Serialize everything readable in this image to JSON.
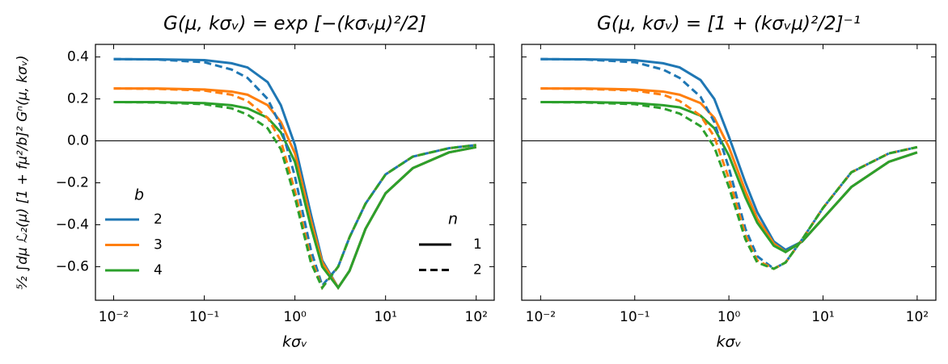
{
  "chart_data": [
    {
      "type": "line",
      "title": "G(μ, kσᵥ) = exp [−(kσᵥμ)²/2]",
      "xlabel": "kσᵥ",
      "ylabel": "⁵⁄₂ ∫dμ ℒ₂(μ) [1 + fμ²/b]² Gⁿ(μ, kσᵥ)",
      "xscale": "log",
      "xlim": [
        0.0063,
        158
      ],
      "ylim": [
        -0.76,
        0.46
      ],
      "xticks": [
        {
          "value": 0.01,
          "label": "10⁻²"
        },
        {
          "value": 0.1,
          "label": "10⁻¹"
        },
        {
          "value": 1,
          "label": "10⁰"
        },
        {
          "value": 10,
          "label": "10¹"
        },
        {
          "value": 100,
          "label": "10²"
        }
      ],
      "yticks": [
        {
          "value": -0.6,
          "label": "−0.6"
        },
        {
          "value": -0.4,
          "label": "−0.4"
        },
        {
          "value": -0.2,
          "label": "−0.2"
        },
        {
          "value": 0,
          "label": "0.0"
        },
        {
          "value": 0.2,
          "label": "0.2"
        },
        {
          "value": 0.4,
          "label": "0.4"
        }
      ],
      "ytick_labels": true,
      "hline": 0,
      "x": [
        0.01,
        0.03,
        0.1,
        0.2,
        0.3,
        0.5,
        0.7,
        1,
        1.5,
        2,
        3,
        4,
        6,
        10,
        20,
        50,
        100
      ],
      "series": [
        {
          "color": "#1f77b4",
          "dash": "solid",
          "values": [
            0.39,
            0.389,
            0.385,
            0.37,
            0.35,
            0.28,
            0.17,
            -0.02,
            -0.35,
            -0.57,
            -0.7,
            -0.62,
            -0.42,
            -0.25,
            -0.13,
            -0.055,
            -0.03
          ]
        },
        {
          "color": "#ff7f0e",
          "dash": "solid",
          "values": [
            0.25,
            0.25,
            0.245,
            0.235,
            0.22,
            0.17,
            0.09,
            -0.06,
            -0.38,
            -0.58,
            -0.7,
            -0.62,
            -0.42,
            -0.25,
            -0.13,
            -0.055,
            -0.03
          ]
        },
        {
          "color": "#2ca02c",
          "dash": "solid",
          "values": [
            0.185,
            0.185,
            0.18,
            0.17,
            0.155,
            0.11,
            0.04,
            -0.1,
            -0.41,
            -0.6,
            -0.7,
            -0.62,
            -0.42,
            -0.25,
            -0.13,
            -0.055,
            -0.03
          ]
        },
        {
          "color": "#1f77b4",
          "dash": "dashed",
          "values": [
            0.39,
            0.388,
            0.375,
            0.34,
            0.3,
            0.2,
            0.07,
            -0.17,
            -0.52,
            -0.69,
            -0.6,
            -0.46,
            -0.3,
            -0.16,
            -0.075,
            -0.035,
            -0.02
          ]
        },
        {
          "color": "#ff7f0e",
          "dash": "dashed",
          "values": [
            0.25,
            0.248,
            0.24,
            0.22,
            0.19,
            0.11,
            0.0,
            -0.24,
            -0.56,
            -0.7,
            -0.6,
            -0.46,
            -0.3,
            -0.16,
            -0.075,
            -0.035,
            -0.02
          ]
        },
        {
          "color": "#2ca02c",
          "dash": "dashed",
          "values": [
            0.185,
            0.183,
            0.175,
            0.155,
            0.125,
            0.06,
            -0.04,
            -0.27,
            -0.58,
            -0.7,
            -0.6,
            -0.46,
            -0.3,
            -0.16,
            -0.075,
            -0.035,
            -0.02
          ]
        }
      ],
      "legend_b": {
        "title": "b",
        "entries": [
          {
            "name": "2",
            "color": "#1f77b4"
          },
          {
            "name": "3",
            "color": "#ff7f0e"
          },
          {
            "name": "4",
            "color": "#2ca02c"
          }
        ]
      },
      "legend_n": {
        "title": "n",
        "entries": [
          {
            "name": "1",
            "dash": "solid"
          },
          {
            "name": "2",
            "dash": "dashed"
          }
        ]
      }
    },
    {
      "type": "line",
      "title": "G(μ, kσᵥ) = [1 + (kσᵥμ)²/2]⁻¹",
      "xlabel": "kσᵥ",
      "xscale": "log",
      "xlim": [
        0.0063,
        158
      ],
      "ylim": [
        -0.76,
        0.46
      ],
      "xticks": [
        {
          "value": 0.01,
          "label": "10⁻²"
        },
        {
          "value": 0.1,
          "label": "10⁻¹"
        },
        {
          "value": 1,
          "label": "10⁰"
        },
        {
          "value": 10,
          "label": "10¹"
        },
        {
          "value": 100,
          "label": "10²"
        }
      ],
      "yticks": [
        -0.6,
        -0.4,
        -0.2,
        0,
        0.2,
        0.4
      ],
      "ytick_labels": false,
      "hline": 0,
      "x": [
        0.01,
        0.03,
        0.1,
        0.2,
        0.3,
        0.5,
        0.7,
        1,
        1.5,
        2,
        3,
        4,
        6,
        10,
        20,
        50,
        100
      ],
      "series": [
        {
          "color": "#1f77b4",
          "dash": "solid",
          "values": [
            0.39,
            0.389,
            0.385,
            0.37,
            0.35,
            0.29,
            0.2,
            0.02,
            -0.2,
            -0.34,
            -0.48,
            -0.52,
            -0.48,
            -0.37,
            -0.22,
            -0.1,
            -0.055
          ]
        },
        {
          "color": "#ff7f0e",
          "dash": "solid",
          "values": [
            0.25,
            0.25,
            0.245,
            0.235,
            0.22,
            0.18,
            0.11,
            -0.03,
            -0.24,
            -0.37,
            -0.49,
            -0.53,
            -0.48,
            -0.37,
            -0.22,
            -0.1,
            -0.055
          ]
        },
        {
          "color": "#2ca02c",
          "dash": "solid",
          "values": [
            0.185,
            0.185,
            0.18,
            0.17,
            0.16,
            0.12,
            0.06,
            -0.07,
            -0.27,
            -0.39,
            -0.5,
            -0.53,
            -0.48,
            -0.37,
            -0.22,
            -0.1,
            -0.055
          ]
        },
        {
          "color": "#1f77b4",
          "dash": "dashed",
          "values": [
            0.39,
            0.388,
            0.375,
            0.34,
            0.3,
            0.21,
            0.09,
            -0.13,
            -0.42,
            -0.55,
            -0.61,
            -0.58,
            -0.47,
            -0.32,
            -0.15,
            -0.06,
            -0.03
          ]
        },
        {
          "color": "#ff7f0e",
          "dash": "dashed",
          "values": [
            0.25,
            0.248,
            0.24,
            0.22,
            0.19,
            0.12,
            0.02,
            -0.18,
            -0.45,
            -0.57,
            -0.61,
            -0.58,
            -0.47,
            -0.32,
            -0.15,
            -0.06,
            -0.03
          ]
        },
        {
          "color": "#2ca02c",
          "dash": "dashed",
          "values": [
            0.185,
            0.183,
            0.175,
            0.155,
            0.13,
            0.07,
            -0.03,
            -0.22,
            -0.47,
            -0.58,
            -0.61,
            -0.58,
            -0.47,
            -0.32,
            -0.15,
            -0.06,
            -0.03
          ]
        }
      ]
    }
  ]
}
